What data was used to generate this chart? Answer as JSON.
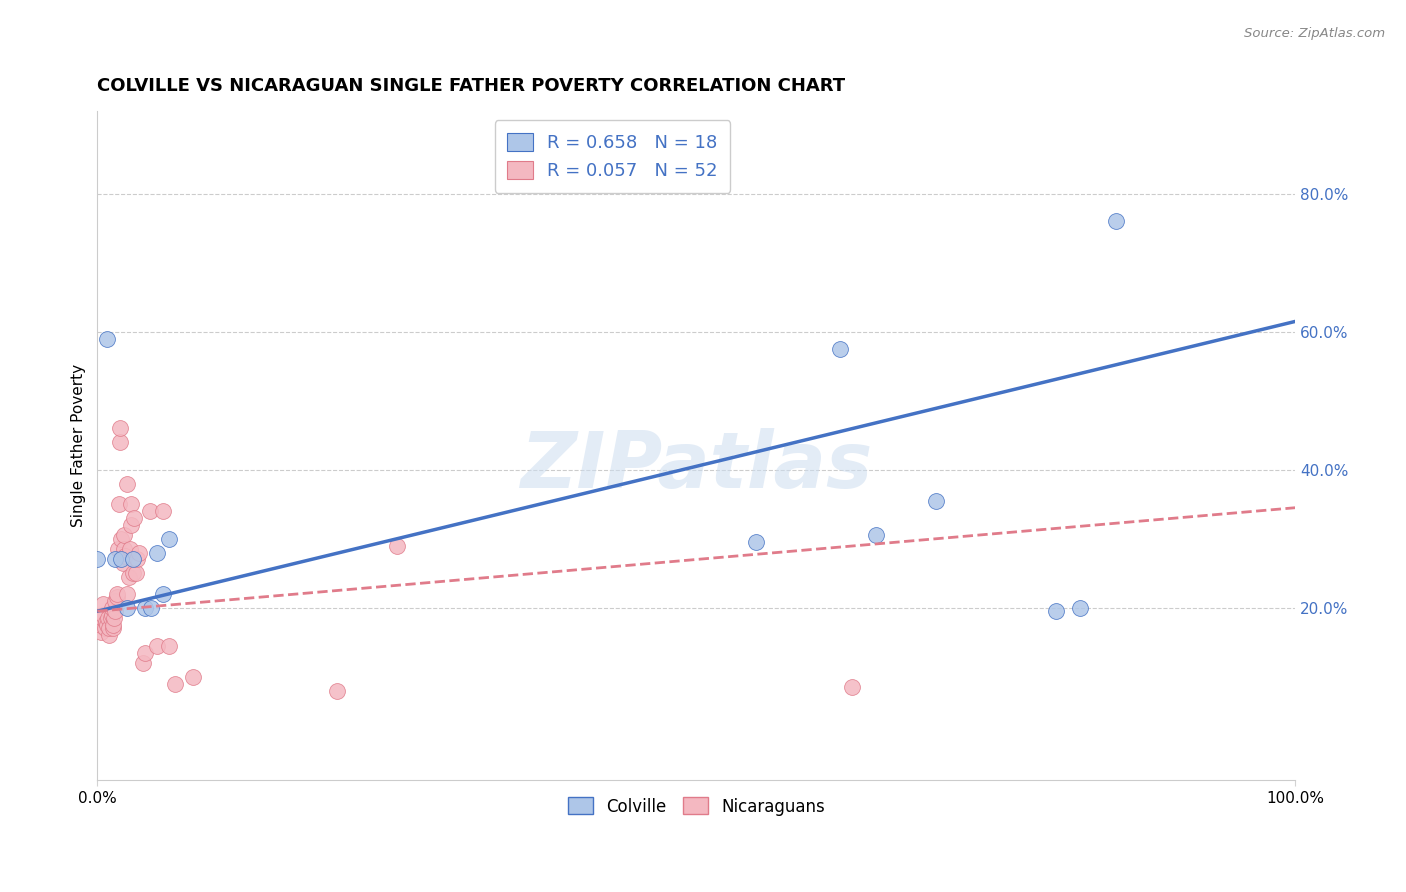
{
  "title": "COLVILLE VS NICARAGUAN SINGLE FATHER POVERTY CORRELATION CHART",
  "source": "Source: ZipAtlas.com",
  "ylabel": "Single Father Poverty",
  "xlim": [
    0.0,
    1.0
  ],
  "ylim": [
    -0.05,
    0.92
  ],
  "xtick_vals": [
    0.0,
    1.0
  ],
  "xtick_labels": [
    "0.0%",
    "100.0%"
  ],
  "ytick_positions": [
    0.2,
    0.4,
    0.6,
    0.8
  ],
  "ytick_labels": [
    "20.0%",
    "40.0%",
    "60.0%",
    "80.0%"
  ],
  "watermark": "ZIPatlas",
  "colville_R": 0.658,
  "colville_N": 18,
  "nicaraguan_R": 0.057,
  "nicaraguan_N": 52,
  "colville_color": "#aec6e8",
  "colville_line_color": "#4472c4",
  "nicaraguan_color": "#f4b8c1",
  "nicaraguan_line_color": "#e07b8a",
  "colville_x": [
    0.008,
    0.015,
    0.02,
    0.025,
    0.03,
    0.04,
    0.045,
    0.05,
    0.055,
    0.06,
    0.55,
    0.62,
    0.65,
    0.7,
    0.8,
    0.82,
    0.85,
    0.0
  ],
  "colville_y": [
    0.59,
    0.27,
    0.27,
    0.2,
    0.27,
    0.2,
    0.2,
    0.28,
    0.22,
    0.3,
    0.295,
    0.575,
    0.305,
    0.355,
    0.195,
    0.2,
    0.76,
    0.27
  ],
  "nicaraguan_x": [
    0.003,
    0.003,
    0.004,
    0.005,
    0.005,
    0.006,
    0.007,
    0.008,
    0.009,
    0.01,
    0.01,
    0.011,
    0.012,
    0.012,
    0.013,
    0.013,
    0.014,
    0.015,
    0.015,
    0.016,
    0.016,
    0.017,
    0.018,
    0.019,
    0.019,
    0.02,
    0.021,
    0.022,
    0.022,
    0.023,
    0.025,
    0.025,
    0.026,
    0.027,
    0.028,
    0.028,
    0.03,
    0.031,
    0.032,
    0.033,
    0.035,
    0.038,
    0.04,
    0.044,
    0.05,
    0.055,
    0.06,
    0.065,
    0.08,
    0.2,
    0.25,
    0.63
  ],
  "nicaraguan_y": [
    0.165,
    0.175,
    0.185,
    0.19,
    0.205,
    0.17,
    0.18,
    0.175,
    0.185,
    0.16,
    0.17,
    0.185,
    0.19,
    0.2,
    0.17,
    0.175,
    0.185,
    0.195,
    0.21,
    0.215,
    0.22,
    0.285,
    0.35,
    0.44,
    0.46,
    0.3,
    0.265,
    0.285,
    0.305,
    0.275,
    0.38,
    0.22,
    0.245,
    0.285,
    0.35,
    0.32,
    0.25,
    0.33,
    0.25,
    0.27,
    0.28,
    0.12,
    0.135,
    0.34,
    0.145,
    0.34,
    0.145,
    0.09,
    0.1,
    0.08,
    0.29,
    0.085
  ],
  "blue_line_x0": 0.0,
  "blue_line_y0": 0.195,
  "blue_line_x1": 1.0,
  "blue_line_y1": 0.615,
  "pink_line_x0": 0.0,
  "pink_line_y0": 0.195,
  "pink_line_x1": 1.0,
  "pink_line_y1": 0.345
}
